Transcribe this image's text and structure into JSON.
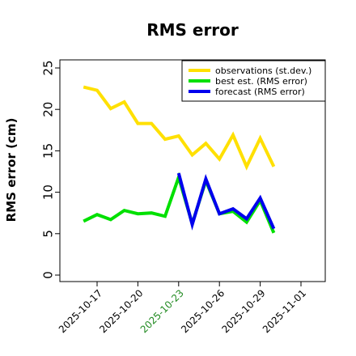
{
  "chart_data": {
    "type": "line",
    "title": "RMS error",
    "ylabel": "RMS error (cm)",
    "xlabel": "",
    "ylim": [
      0,
      26
    ],
    "yticks": [
      0,
      5,
      10,
      15,
      20,
      25
    ],
    "xlim": [
      "2025-10-14T12:00",
      "2025-11-03"
    ],
    "xticks": [
      {
        "date": "2025-10-17",
        "label": "2025-10-17",
        "color": "#000000"
      },
      {
        "date": "2025-10-20",
        "label": "2025-10-20",
        "color": "#000000"
      },
      {
        "date": "2025-10-23",
        "label": "2025-10-23",
        "color": "#228B22"
      },
      {
        "date": "2025-10-26",
        "label": "2025-10-26",
        "color": "#000000"
      },
      {
        "date": "2025-10-29",
        "label": "2025-10-29",
        "color": "#000000"
      },
      {
        "date": "2025-11-01",
        "label": "2025-11-01",
        "color": "#000000"
      }
    ],
    "grid": false,
    "legend_position": "top-right",
    "series": [
      {
        "name": "observations (st.dev.)",
        "color": "#FFE000",
        "x": [
          "2025-10-16",
          "2025-10-17",
          "2025-10-18",
          "2025-10-19",
          "2025-10-20",
          "2025-10-21",
          "2025-10-22",
          "2025-10-23",
          "2025-10-24",
          "2025-10-25",
          "2025-10-26",
          "2025-10-27",
          "2025-10-28",
          "2025-10-29",
          "2025-10-30"
        ],
        "y": [
          22.7,
          22.3,
          20.1,
          20.9,
          18.3,
          18.3,
          16.4,
          16.8,
          14.5,
          15.9,
          14.0,
          16.9,
          13.1,
          16.5,
          13.1
        ]
      },
      {
        "name": "best est. (RMS error)",
        "color": "#00E000",
        "x": [
          "2025-10-16",
          "2025-10-17",
          "2025-10-18",
          "2025-10-19",
          "2025-10-20",
          "2025-10-21",
          "2025-10-22",
          "2025-10-23",
          "2025-10-24",
          "2025-10-25",
          "2025-10-26",
          "2025-10-27",
          "2025-10-28",
          "2025-10-29",
          "2025-10-30"
        ],
        "y": [
          6.5,
          7.3,
          6.7,
          7.8,
          7.4,
          7.5,
          7.1,
          11.8,
          6.2,
          11.4,
          7.4,
          7.7,
          6.4,
          9.0,
          5.1
        ]
      },
      {
        "name": "forecast (RMS error)",
        "color": "#0000EE",
        "x": [
          "2025-10-23",
          "2025-10-24",
          "2025-10-25",
          "2025-10-26",
          "2025-10-27",
          "2025-10-28",
          "2025-10-29",
          "2025-10-30"
        ],
        "y": [
          12.3,
          6.1,
          11.6,
          7.4,
          8.0,
          6.8,
          9.3,
          5.6
        ]
      }
    ]
  }
}
